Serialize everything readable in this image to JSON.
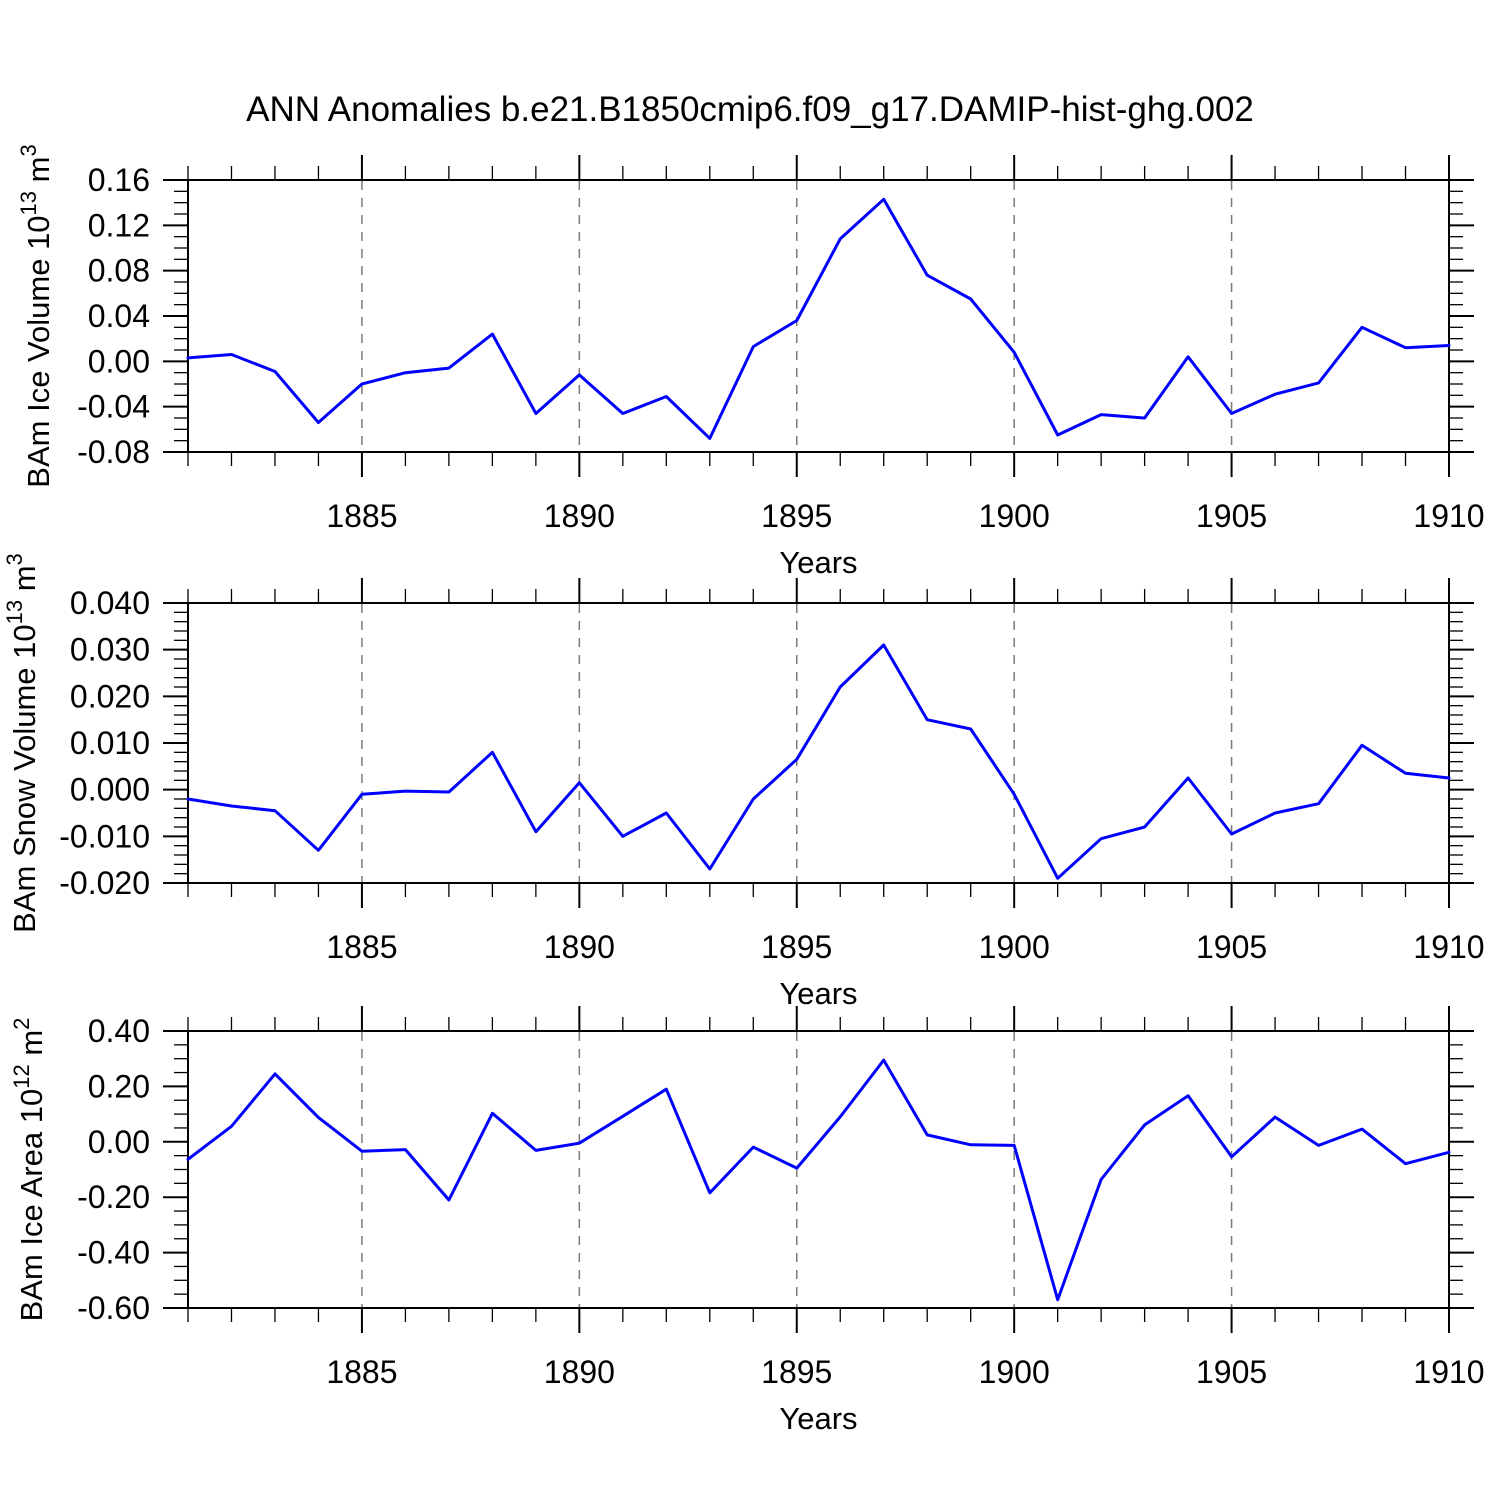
{
  "title": "ANN Anomalies b.e21.B1850cmip6.f09_g17.DAMIP-hist-ghg.002",
  "xlabel": "Years",
  "colors": {
    "line": "#0000ff",
    "axis": "#000000",
    "grid": "#7a7a7a",
    "text": "#000000",
    "background": "#ffffff"
  },
  "x_axis": {
    "lim": [
      1881,
      1910
    ],
    "years": [
      1881,
      1882,
      1883,
      1884,
      1885,
      1886,
      1887,
      1888,
      1889,
      1890,
      1891,
      1892,
      1893,
      1894,
      1895,
      1896,
      1897,
      1898,
      1899,
      1900,
      1901,
      1902,
      1903,
      1904,
      1905,
      1906,
      1907,
      1908,
      1909,
      1910
    ],
    "major_ticks": [
      1885,
      1890,
      1895,
      1900,
      1905,
      1910
    ],
    "tick_labels": [
      "1885",
      "1890",
      "1895",
      "1900",
      "1905",
      "1910"
    ],
    "gridlines": [
      1885,
      1890,
      1895,
      1900,
      1905
    ],
    "minor_step": 1
  },
  "chart_data": [
    {
      "id": "ice-volume",
      "type": "line",
      "ylabel": "BAm Ice Volume 10^13 m^3",
      "ylim": [
        -0.08,
        0.16
      ],
      "ytick_step": 0.04,
      "yminor_step": 0.01,
      "ytick_labels": [
        "-0.08",
        "-0.04",
        "0.00",
        "0.04",
        "0.08",
        "0.12",
        "0.16"
      ],
      "values": [
        0.003,
        0.006,
        -0.009,
        -0.054,
        -0.02,
        -0.01,
        -0.006,
        0.024,
        -0.046,
        -0.012,
        -0.046,
        -0.031,
        -0.068,
        0.013,
        0.036,
        0.108,
        0.143,
        0.076,
        0.055,
        0.008,
        -0.065,
        -0.047,
        -0.05,
        0.004,
        -0.046,
        -0.029,
        -0.019,
        0.03,
        0.012,
        0.014
      ]
    },
    {
      "id": "snow-volume",
      "type": "line",
      "ylabel": "BAm Snow Volume 10^13 m^3",
      "ylim": [
        -0.02,
        0.04
      ],
      "ytick_step": 0.01,
      "yminor_step": 0.002,
      "ytick_labels": [
        "-0.020",
        "-0.010",
        "0.000",
        "0.010",
        "0.020",
        "0.030",
        "0.040"
      ],
      "values": [
        -0.002,
        -0.0035,
        -0.0045,
        -0.013,
        -0.001,
        -0.0003,
        -0.0005,
        0.008,
        -0.009,
        0.0015,
        -0.01,
        -0.005,
        -0.017,
        -0.002,
        0.0065,
        0.022,
        0.031,
        0.015,
        0.013,
        -0.001,
        -0.019,
        -0.0105,
        -0.008,
        0.0025,
        -0.0095,
        -0.005,
        -0.003,
        0.0095,
        0.0035,
        0.0025
      ]
    },
    {
      "id": "ice-area",
      "type": "line",
      "ylabel": "BAm Ice Area 10^12 m^2",
      "ylim": [
        -0.6,
        0.4
      ],
      "ytick_step": 0.2,
      "yminor_step": 0.05,
      "ytick_labels": [
        "-0.60",
        "-0.40",
        "-0.20",
        "0.00",
        "0.20",
        "0.40"
      ],
      "values": [
        -0.063,
        0.056,
        0.245,
        0.088,
        -0.034,
        -0.028,
        -0.21,
        0.103,
        -0.031,
        -0.005,
        0.092,
        0.19,
        -0.184,
        -0.019,
        -0.095,
        0.09,
        0.295,
        0.025,
        -0.011,
        -0.013,
        -0.57,
        -0.136,
        0.061,
        0.166,
        -0.054,
        0.089,
        -0.013,
        0.046,
        -0.079,
        -0.038
      ]
    }
  ]
}
